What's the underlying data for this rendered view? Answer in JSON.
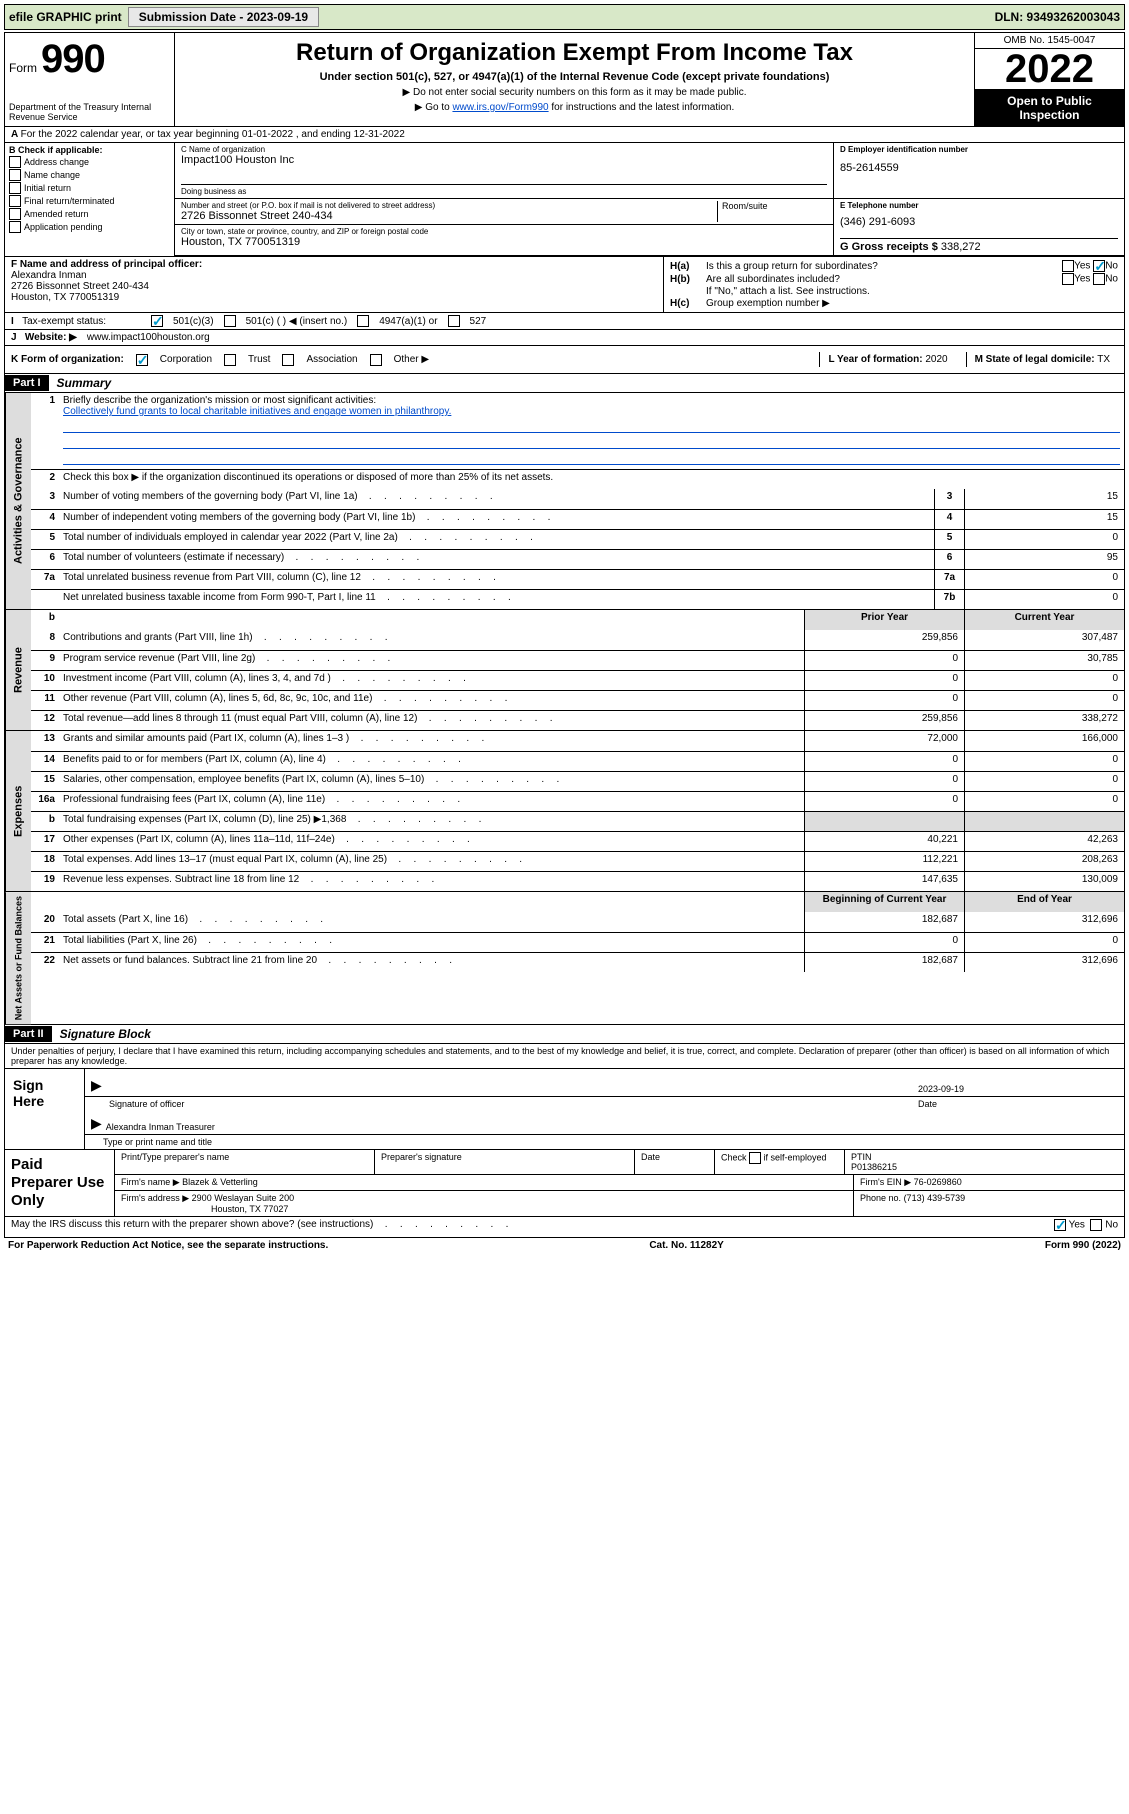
{
  "toolbar": {
    "efile": "efile GRAPHIC print",
    "sub_lbl": "Submission Date - 2023-09-19",
    "dln": "DLN: 93493262003043"
  },
  "header": {
    "form_word": "Form",
    "form_num": "990",
    "dept": "Department of the Treasury Internal Revenue Service",
    "title": "Return of Organization Exempt From Income Tax",
    "subtitle": "Under section 501(c), 527, or 4947(a)(1) of the Internal Revenue Code (except private foundations)",
    "note1": "Do not enter social security numbers on this form as it may be made public.",
    "note2_pre": "Go to ",
    "note2_link": "www.irs.gov/Form990",
    "note2_post": " for instructions and the latest information.",
    "omb": "OMB No. 1545-0047",
    "year": "2022",
    "open": "Open to Public Inspection"
  },
  "row_a": "For the 2022 calendar year, or tax year beginning 01-01-2022    , and ending 12-31-2022",
  "col_b": {
    "title": "B Check if applicable:",
    "opts": [
      "Address change",
      "Name change",
      "Initial return",
      "Final return/terminated",
      "Amended return",
      "Application pending"
    ]
  },
  "org": {
    "c_lbl": "C Name of organization",
    "name": "Impact100 Houston Inc",
    "dba_lbl": "Doing business as",
    "dba": "",
    "addr_lbl": "Number and street (or P.O. box if mail is not delivered to street address)",
    "addr": "2726 Bissonnet Street 240-434",
    "room_lbl": "Room/suite",
    "city_lbl": "City or town, state or province, country, and ZIP or foreign postal code",
    "city": "Houston, TX  770051319"
  },
  "d": {
    "lbl": "D Employer identification number",
    "val": "85-2614559"
  },
  "e": {
    "lbl": "E Telephone number",
    "val": "(346) 291-6093"
  },
  "g": {
    "lbl": "G Gross receipts $",
    "val": "338,272"
  },
  "f": {
    "lbl": "F Name and address of principal officer:",
    "name": "Alexandra Inman",
    "addr1": "2726 Bissonnet Street 240-434",
    "addr2": "Houston, TX  770051319"
  },
  "h": {
    "a": "Is this a group return for subordinates?",
    "b": "Are all subordinates included?",
    "note": "If \"No,\" attach a list. See instructions.",
    "c": "Group exemption number ▶"
  },
  "i": {
    "lbl": "Tax-exempt status:",
    "opts": [
      "501(c)(3)",
      "501(c) (  ) ◀ (insert no.)",
      "4947(a)(1) or",
      "527"
    ]
  },
  "j": {
    "lbl": "Website: ▶",
    "val": "www.impact100houston.org"
  },
  "k": {
    "lbl": "K Form of organization:",
    "opts": [
      "Corporation",
      "Trust",
      "Association",
      "Other ▶"
    ]
  },
  "l": {
    "lbl": "L Year of formation:",
    "val": "2020"
  },
  "m": {
    "lbl": "M State of legal domicile:",
    "val": "TX"
  },
  "part1": {
    "hdr": "Part I",
    "title": "Summary"
  },
  "mission": {
    "lbl": "Briefly describe the organization's mission or most significant activities:",
    "text": "Collectively fund grants to local charitable initiatives and engage women in philanthropy."
  },
  "line2": "Check this box ▶        if the organization discontinued its operations or disposed of more than 25% of its net assets.",
  "gov_lines": [
    {
      "n": "3",
      "t": "Number of voting members of the governing body (Part VI, line 1a)",
      "box": "3",
      "v": "15"
    },
    {
      "n": "4",
      "t": "Number of independent voting members of the governing body (Part VI, line 1b)",
      "box": "4",
      "v": "15"
    },
    {
      "n": "5",
      "t": "Total number of individuals employed in calendar year 2022 (Part V, line 2a)",
      "box": "5",
      "v": "0"
    },
    {
      "n": "6",
      "t": "Total number of volunteers (estimate if necessary)",
      "box": "6",
      "v": "95"
    },
    {
      "n": "7a",
      "t": "Total unrelated business revenue from Part VIII, column (C), line 12",
      "box": "7a",
      "v": "0"
    },
    {
      "n": "",
      "t": "Net unrelated business taxable income from Form 990-T, Part I, line 11",
      "box": "7b",
      "v": "0"
    }
  ],
  "col_hdrs": {
    "b": "b",
    "prior": "Prior Year",
    "curr": "Current Year"
  },
  "revenue": [
    {
      "n": "8",
      "t": "Contributions and grants (Part VIII, line 1h)",
      "p": "259,856",
      "c": "307,487"
    },
    {
      "n": "9",
      "t": "Program service revenue (Part VIII, line 2g)",
      "p": "0",
      "c": "30,785"
    },
    {
      "n": "10",
      "t": "Investment income (Part VIII, column (A), lines 3, 4, and 7d )",
      "p": "0",
      "c": "0"
    },
    {
      "n": "11",
      "t": "Other revenue (Part VIII, column (A), lines 5, 6d, 8c, 9c, 10c, and 11e)",
      "p": "0",
      "c": "0"
    },
    {
      "n": "12",
      "t": "Total revenue—add lines 8 through 11 (must equal Part VIII, column (A), line 12)",
      "p": "259,856",
      "c": "338,272"
    }
  ],
  "expenses": [
    {
      "n": "13",
      "t": "Grants and similar amounts paid (Part IX, column (A), lines 1–3 )",
      "p": "72,000",
      "c": "166,000"
    },
    {
      "n": "14",
      "t": "Benefits paid to or for members (Part IX, column (A), line 4)",
      "p": "0",
      "c": "0"
    },
    {
      "n": "15",
      "t": "Salaries, other compensation, employee benefits (Part IX, column (A), lines 5–10)",
      "p": "0",
      "c": "0"
    },
    {
      "n": "16a",
      "t": "Professional fundraising fees (Part IX, column (A), line 11e)",
      "p": "0",
      "c": "0"
    },
    {
      "n": "b",
      "t": "Total fundraising expenses (Part IX, column (D), line 25) ▶1,368",
      "p": "",
      "c": "",
      "grey": true
    },
    {
      "n": "17",
      "t": "Other expenses (Part IX, column (A), lines 11a–11d, 11f–24e)",
      "p": "40,221",
      "c": "42,263"
    },
    {
      "n": "18",
      "t": "Total expenses. Add lines 13–17 (must equal Part IX, column (A), line 25)",
      "p": "112,221",
      "c": "208,263"
    },
    {
      "n": "19",
      "t": "Revenue less expenses. Subtract line 18 from line 12",
      "p": "147,635",
      "c": "130,009"
    }
  ],
  "na_hdrs": {
    "beg": "Beginning of Current Year",
    "end": "End of Year"
  },
  "netassets": [
    {
      "n": "20",
      "t": "Total assets (Part X, line 16)",
      "p": "182,687",
      "c": "312,696"
    },
    {
      "n": "21",
      "t": "Total liabilities (Part X, line 26)",
      "p": "0",
      "c": "0"
    },
    {
      "n": "22",
      "t": "Net assets or fund balances. Subtract line 21 from line 20",
      "p": "182,687",
      "c": "312,696"
    }
  ],
  "part2": {
    "hdr": "Part II",
    "title": "Signature Block"
  },
  "decl": "Under penalties of perjury, I declare that I have examined this return, including accompanying schedules and statements, and to the best of my knowledge and belief, it is true, correct, and complete. Declaration of preparer (other than officer) is based on all information of which preparer has any knowledge.",
  "sign": {
    "lbl": "Sign Here",
    "sig_lbl": "Signature of officer",
    "date_lbl": "Date",
    "date": "2023-09-19",
    "name": "Alexandra Inman  Treasurer",
    "name_lbl": "Type or print name and title"
  },
  "prep": {
    "lbl": "Paid Preparer Use Only",
    "h1": "Print/Type preparer's name",
    "h2": "Preparer's signature",
    "h3": "Date",
    "h4": "Check        if self-employed",
    "h5": "PTIN",
    "ptin": "P01386215",
    "firm_lbl": "Firm's name   ▶",
    "firm": "Blazek & Vetterling",
    "ein_lbl": "Firm's EIN ▶",
    "ein": "76-0269860",
    "addr_lbl": "Firm's address ▶",
    "addr1": "2900 Weslayan Suite 200",
    "addr2": "Houston, TX  77027",
    "phone_lbl": "Phone no.",
    "phone": "(713) 439-5739"
  },
  "discuss": "May the IRS discuss this return with the preparer shown above? (see instructions)",
  "footer": {
    "pra": "For Paperwork Reduction Act Notice, see the separate instructions.",
    "cat": "Cat. No. 11282Y",
    "form": "Form 990 (2022)"
  },
  "vtabs": {
    "gov": "Activities & Governance",
    "rev": "Revenue",
    "exp": "Expenses",
    "na": "Net Assets or Fund Balances"
  }
}
